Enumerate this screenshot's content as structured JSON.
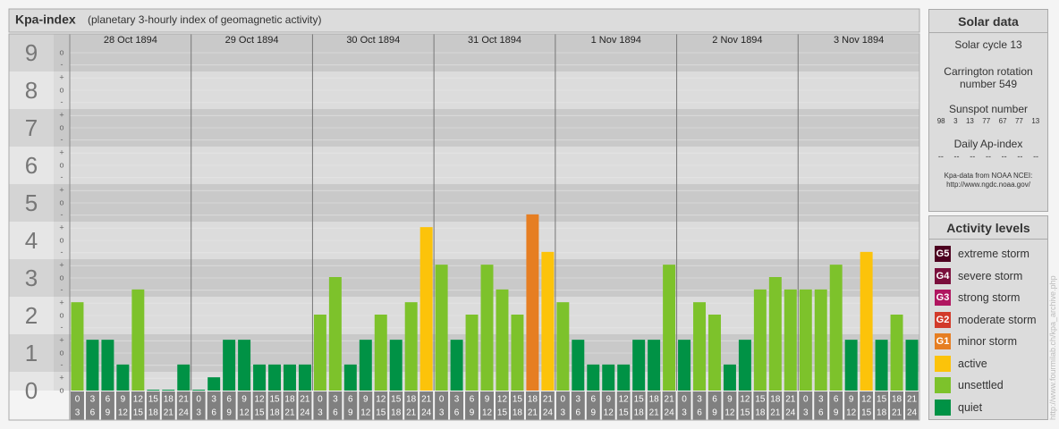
{
  "chart_data": {
    "type": "bar",
    "title": "Kpa-index",
    "subtitle": "(planetary 3-hourly index of geomagnetic activity)",
    "categories": [
      "28 Oct 1894",
      "29 Oct 1894",
      "30 Oct 1894",
      "31 Oct 1894",
      "1 Nov 1894",
      "2 Nov 1894",
      "3 Nov 1894"
    ],
    "hour_ranges": [
      [
        0,
        3
      ],
      [
        3,
        6
      ],
      [
        6,
        9
      ],
      [
        9,
        12
      ],
      [
        12,
        15
      ],
      [
        15,
        18
      ],
      [
        18,
        21
      ],
      [
        21,
        24
      ]
    ],
    "values": [
      [
        2.33,
        1.33,
        1.33,
        0.67,
        2.67,
        0,
        0,
        0.67
      ],
      [
        0,
        0.33,
        1.33,
        1.33,
        0.67,
        0.67,
        0.67,
        0.67
      ],
      [
        2,
        3,
        0.67,
        1.33,
        2,
        1.33,
        2.33,
        4.33
      ],
      [
        3.33,
        1.33,
        2,
        3.33,
        2.67,
        2,
        4.67,
        3.67
      ],
      [
        2.33,
        1.33,
        0.67,
        0.67,
        0.67,
        1.33,
        1.33,
        3.33
      ],
      [
        1.33,
        2.33,
        2,
        0.67,
        1.33,
        2.67,
        3,
        2.67
      ],
      [
        2.67,
        2.67,
        3.33,
        1.33,
        3.67,
        1.33,
        2,
        1.33
      ]
    ],
    "colors": [
      [
        "#7dc22b",
        "#009245",
        "#009245",
        "#009245",
        "#7dc22b",
        "#009245",
        "#009245",
        "#009245"
      ],
      [
        "#009245",
        "#009245",
        "#009245",
        "#009245",
        "#009245",
        "#009245",
        "#009245",
        "#009245"
      ],
      [
        "#7dc22b",
        "#7dc22b",
        "#009245",
        "#009245",
        "#7dc22b",
        "#009245",
        "#7dc22b",
        "#fcc30a"
      ],
      [
        "#7dc22b",
        "#009245",
        "#7dc22b",
        "#7dc22b",
        "#7dc22b",
        "#7dc22b",
        "#e67e22",
        "#fcc30a"
      ],
      [
        "#7dc22b",
        "#009245",
        "#009245",
        "#009245",
        "#009245",
        "#009245",
        "#009245",
        "#7dc22b"
      ],
      [
        "#009245",
        "#7dc22b",
        "#7dc22b",
        "#009245",
        "#009245",
        "#7dc22b",
        "#7dc22b",
        "#7dc22b"
      ],
      [
        "#7dc22b",
        "#7dc22b",
        "#7dc22b",
        "#009245",
        "#fcc30a",
        "#009245",
        "#7dc22b",
        "#009245"
      ]
    ],
    "ylim": [
      0,
      9.5
    ],
    "yticks": [
      0,
      1,
      2,
      3,
      4,
      5,
      6,
      7,
      8,
      9
    ],
    "minor_ticks": [
      {
        "value": 0,
        "label": "o"
      },
      {
        "value": 0.33,
        "label": "+"
      },
      {
        "value": 0.67,
        "label": "-"
      },
      {
        "value": 1,
        "label": "o"
      },
      {
        "value": 1.33,
        "label": "+"
      },
      {
        "value": 1.67,
        "label": "-"
      },
      {
        "value": 2,
        "label": "o"
      },
      {
        "value": 2.33,
        "label": "+"
      },
      {
        "value": 2.67,
        "label": "-"
      },
      {
        "value": 3,
        "label": "o"
      },
      {
        "value": 3.33,
        "label": "+"
      },
      {
        "value": 3.67,
        "label": "-"
      },
      {
        "value": 4,
        "label": "o"
      },
      {
        "value": 4.33,
        "label": "+"
      },
      {
        "value": 4.67,
        "label": "-"
      },
      {
        "value": 5,
        "label": "o"
      },
      {
        "value": 5.33,
        "label": "+"
      },
      {
        "value": 5.67,
        "label": "-"
      },
      {
        "value": 6,
        "label": "o"
      },
      {
        "value": 6.33,
        "label": "+"
      },
      {
        "value": 6.67,
        "label": "-"
      },
      {
        "value": 7,
        "label": "o"
      },
      {
        "value": 7.33,
        "label": "+"
      },
      {
        "value": 7.67,
        "label": "-"
      },
      {
        "value": 8,
        "label": "o"
      },
      {
        "value": 8.33,
        "label": "+"
      },
      {
        "value": 8.67,
        "label": "-"
      },
      {
        "value": 9,
        "label": "o"
      }
    ]
  },
  "solar_data": {
    "title": "Solar data",
    "cycle": "Solar cycle 13",
    "carrington": "Carrington rotation number 549",
    "sunspot_title": "Sunspot number",
    "sunspot_numbers": [
      98,
      3,
      13,
      77,
      67,
      77,
      13
    ],
    "ap_title": "Daily Ap-index",
    "ap_index": [
      "--",
      "--",
      "--",
      "--",
      "--",
      "--",
      "--"
    ],
    "source": [
      "Kpa-data from NOAA NCEI:",
      "http://www.ngdc.noaa.gov/"
    ]
  },
  "activity_levels": {
    "title": "Activity levels",
    "items": [
      {
        "badge": "G5",
        "label": "extreme storm",
        "color": "#4d0020"
      },
      {
        "badge": "G4",
        "label": "severe storm",
        "color": "#7a0e3c"
      },
      {
        "badge": "G3",
        "label": "strong storm",
        "color": "#b01660"
      },
      {
        "badge": "G2",
        "label": "moderate storm",
        "color": "#d23a2a"
      },
      {
        "badge": "G1",
        "label": "minor storm",
        "color": "#e67e22"
      },
      {
        "label": "active",
        "color": "#fcc30a"
      },
      {
        "label": "unsettled",
        "color": "#7dc22b"
      },
      {
        "label": "quiet",
        "color": "#009245"
      }
    ]
  },
  "watermark": "http://www.fourmilab.ch/kpa_archive.php"
}
